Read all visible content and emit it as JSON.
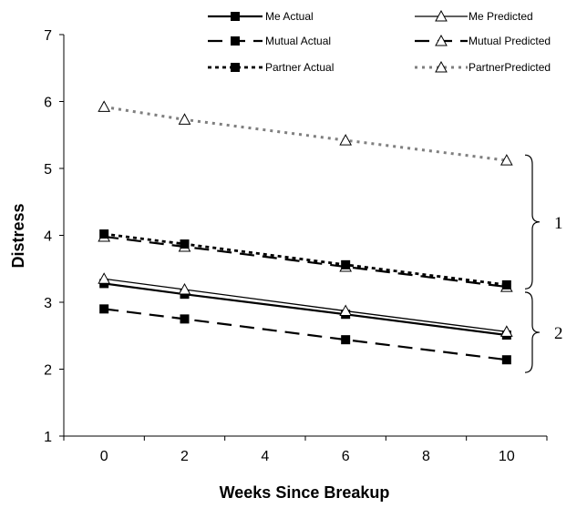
{
  "chart_data": {
    "type": "line",
    "title": "",
    "xlabel": "Weeks Since Breakup",
    "ylabel": "Distress",
    "x": [
      0,
      2,
      6,
      10
    ],
    "x_ticks": [
      "0",
      "2",
      "4",
      "6",
      "8",
      "10"
    ],
    "x_tick_values": [
      0,
      2,
      4,
      6,
      8,
      10
    ],
    "xlim": [
      -1,
      11
    ],
    "y_ticks": [
      "1",
      "2",
      "3",
      "4",
      "5",
      "6",
      "7"
    ],
    "y_tick_values": [
      1,
      2,
      3,
      4,
      5,
      6,
      7
    ],
    "ylim": [
      1,
      7
    ],
    "grid": false,
    "legend_position": "top-right",
    "series": [
      {
        "name": "Me Actual",
        "values": [
          3.28,
          3.12,
          2.82,
          2.51
        ],
        "line_style": "solid-thick",
        "marker": "square"
      },
      {
        "name": "Me Predicted",
        "values": [
          3.35,
          3.19,
          2.87,
          2.56
        ],
        "line_style": "solid-thin",
        "marker": "triangle"
      },
      {
        "name": "Mutual Actual",
        "values": [
          2.9,
          2.75,
          2.44,
          2.14
        ],
        "line_style": "long-dash",
        "marker": "square"
      },
      {
        "name": "Mutual Predicted",
        "values": [
          3.98,
          3.83,
          3.53,
          3.23
        ],
        "line_style": "long-dash",
        "marker": "triangle"
      },
      {
        "name": "Partner Actual",
        "values": [
          4.02,
          3.87,
          3.56,
          3.26
        ],
        "line_style": "dotted",
        "marker": "square"
      },
      {
        "name": "PartnerPredicted",
        "values": [
          5.92,
          5.73,
          5.42,
          5.12
        ],
        "line_style": "dotted-gray",
        "marker": "triangle"
      }
    ],
    "annotations": [
      {
        "label": "1",
        "y_range": [
          3.2,
          5.2
        ]
      },
      {
        "label": "2",
        "y_range": [
          1.95,
          3.15
        ]
      }
    ]
  }
}
